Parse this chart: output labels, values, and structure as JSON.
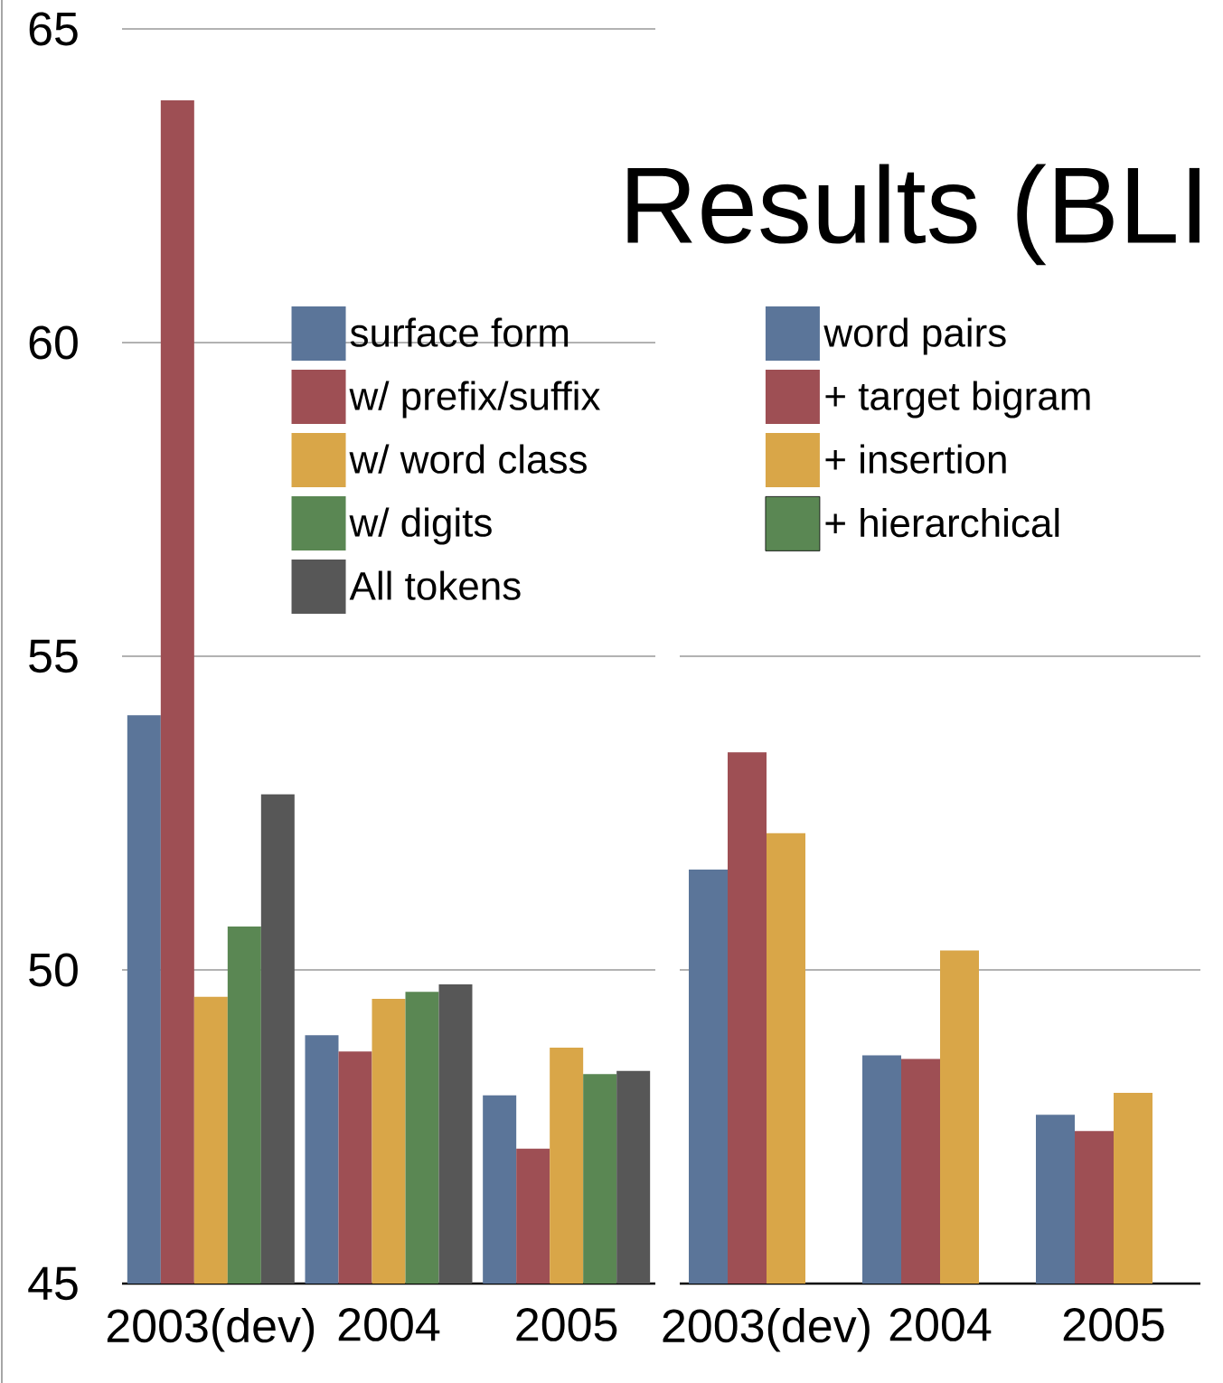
{
  "chart_data": [
    {
      "type": "bar",
      "categories": [
        "2003(dev)",
        "2004",
        "2005"
      ],
      "ylim": [
        45,
        65
      ],
      "yticks": [
        45,
        50,
        55,
        60,
        65
      ],
      "grid": "y",
      "legend": "top",
      "series": [
        {
          "name": "surface form",
          "color": "#5b7599",
          "values": [
            54.06,
            48.96,
            48.0
          ]
        },
        {
          "name": "w/ prefix/suffix",
          "color": "#9e4f54",
          "values": [
            63.86,
            48.7,
            47.15
          ]
        },
        {
          "name": "w/ word class",
          "color": "#d9a648",
          "values": [
            49.57,
            49.54,
            48.76
          ]
        },
        {
          "name": "w/ digits",
          "color": "#5a8753",
          "values": [
            50.69,
            49.65,
            48.34
          ]
        },
        {
          "name": "All tokens",
          "color": "#575757",
          "values": [
            52.8,
            49.77,
            48.39
          ]
        }
      ]
    },
    {
      "type": "bar",
      "title": "Results (BLI",
      "categories": [
        "2003(dev)",
        "2004",
        "2005"
      ],
      "ylim": [
        45,
        65
      ],
      "yticks": [
        45,
        50,
        55
      ],
      "grid": "y",
      "legend": "top right",
      "tick_labels": "x",
      "series": [
        {
          "name": "word pairs",
          "color": "#5b7599",
          "values": [
            51.6,
            48.64,
            47.69
          ]
        },
        {
          "name": "+ target bigram",
          "color": "#9e4f54",
          "values": [
            53.47,
            48.58,
            47.43
          ]
        },
        {
          "name": "+ insertion",
          "color": "#d9a648",
          "values": [
            52.18,
            50.31,
            48.04
          ]
        },
        {
          "name": "+ hierarchical",
          "color": "#5a8753",
          "values": [
            null,
            null,
            null
          ]
        }
      ]
    }
  ]
}
